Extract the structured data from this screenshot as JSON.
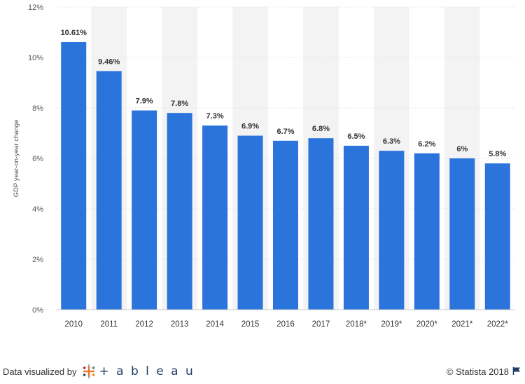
{
  "chart_data": {
    "type": "bar",
    "title": "",
    "xlabel": "",
    "ylabel": "GDP year-on-year change",
    "categories": [
      "2010",
      "2011",
      "2012",
      "2013",
      "2014",
      "2015",
      "2016",
      "2017",
      "2018*",
      "2019*",
      "2020*",
      "2021*",
      "2022*"
    ],
    "values": [
      10.61,
      9.46,
      7.9,
      7.8,
      7.3,
      6.9,
      6.7,
      6.8,
      6.5,
      6.3,
      6.2,
      6.0,
      5.8
    ],
    "data_labels": [
      "10.61%",
      "9.46%",
      "7.9%",
      "7.8%",
      "7.3%",
      "6.9%",
      "6.7%",
      "6.8%",
      "6.5%",
      "6.3%",
      "6.2%",
      "6%",
      "5.8%"
    ],
    "ylim": [
      0,
      12
    ],
    "yticks": [
      0,
      2,
      4,
      6,
      8,
      10,
      12
    ],
    "ytick_labels": [
      "0%",
      "2%",
      "4%",
      "6%",
      "8%",
      "10%",
      "12%"
    ],
    "grid": true,
    "bar_color": "#2a74dc",
    "band_color": "#f3f3f3"
  },
  "footer": {
    "visualized_by": "Data visualized by",
    "tableau_word": "+ a b l e a u",
    "copyright": "© Statista 2018"
  }
}
